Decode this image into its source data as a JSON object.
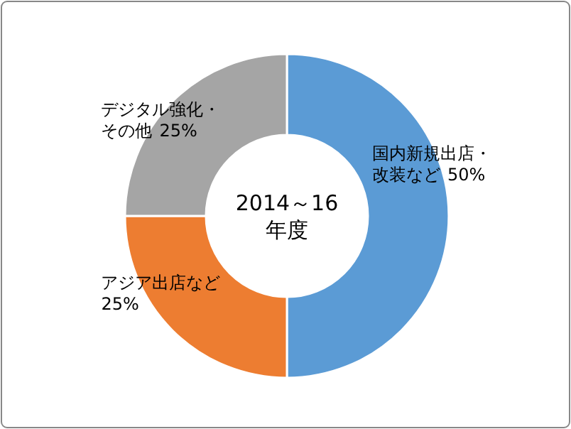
{
  "chart_data": {
    "type": "donut",
    "title": "2014～16\n年度",
    "categories": [
      "国内新規出店・改装など",
      "アジア出店など",
      "デジタル強化・その他"
    ],
    "values": [
      50,
      25,
      25
    ],
    "colors": [
      "#5b9bd5",
      "#ed7d31",
      "#a5a5a5"
    ],
    "value_labels": [
      "50%",
      "25%",
      "25%"
    ]
  }
}
